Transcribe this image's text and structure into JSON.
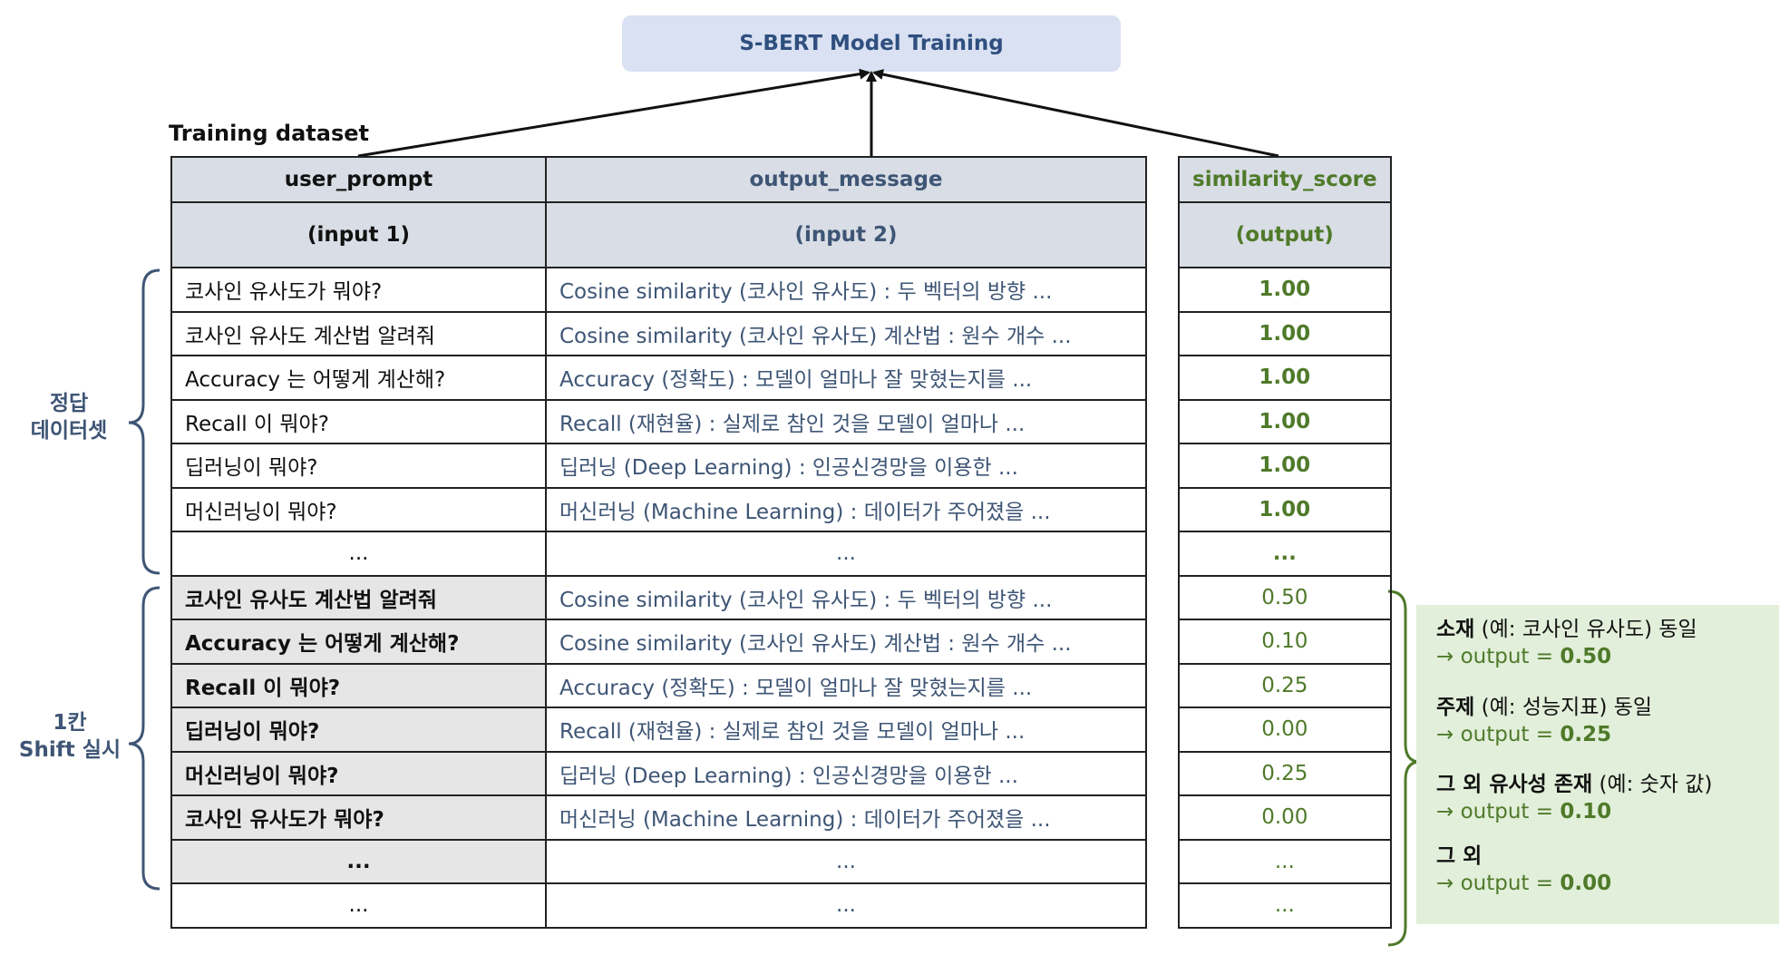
{
  "title": "S-BERT Model Training",
  "dataset_label": "Training dataset",
  "headers": {
    "col1": "user_prompt",
    "col2": "output_message",
    "col3": "similarity_score",
    "col1_sub": "(input 1)",
    "col2_sub": "(input 2)",
    "col3_sub": "(output)"
  },
  "groups": {
    "correct": "정답\n데이터셋",
    "shift": "1칸\nShift 실시"
  },
  "rows": [
    {
      "prompt": "코사인 유사도가 뭐야?",
      "message": "Cosine similarity (코사인 유사도) : 두 벡터의 방향 ...",
      "score": "1.00"
    },
    {
      "prompt": "코사인 유사도 계산법 알려줘",
      "message": "Cosine similarity (코사인 유사도) 계산법 : 원수 개수 ...",
      "score": "1.00"
    },
    {
      "prompt": "Accuracy 는 어떻게 계산해?",
      "message": "Accuracy (정확도) : 모델이 얼마나 잘 맞혔는지를 ...",
      "score": "1.00"
    },
    {
      "prompt": "Recall 이 뭐야?",
      "message": "Recall (재현율) : 실제로 참인 것을 모델이 얼마나 ...",
      "score": "1.00"
    },
    {
      "prompt": "딥러닝이 뭐야?",
      "message": "딥러닝 (Deep Learning) : 인공신경망을 이용한 ...",
      "score": "1.00"
    },
    {
      "prompt": "머신러닝이 뭐야?",
      "message": "머신러닝 (Machine Learning) : 데이터가 주어졌을 ...",
      "score": "1.00"
    },
    {
      "prompt": "...",
      "message": "...",
      "score": "..."
    },
    {
      "prompt": "코사인 유사도 계산법 알려줘",
      "message": "Cosine similarity (코사인 유사도) : 두 벡터의 방향 ...",
      "score": "0.50"
    },
    {
      "prompt": "Accuracy 는 어떻게 계산해?",
      "message": "Cosine similarity (코사인 유사도) 계산법 : 원수 개수 ...",
      "score": "0.10"
    },
    {
      "prompt": "Recall 이 뭐야?",
      "message": "Accuracy (정확도) : 모델이 얼마나 잘 맞혔는지를 ...",
      "score": "0.25"
    },
    {
      "prompt": "딥러닝이 뭐야?",
      "message": "Recall (재현율) : 실제로 참인 것을 모델이 얼마나 ...",
      "score": "0.00"
    },
    {
      "prompt": "머신러닝이 뭐야?",
      "message": "딥러닝 (Deep Learning) : 인공신경망을 이용한 ...",
      "score": "0.25"
    },
    {
      "prompt": "코사인 유사도가 뭐야?",
      "message": "머신러닝 (Machine Learning) : 데이터가 주어졌을 ...",
      "score": "0.00"
    },
    {
      "prompt": "...",
      "message": "...",
      "score": "..."
    },
    {
      "prompt": "...",
      "message": "...",
      "score": "..."
    }
  ],
  "rules": [
    {
      "key": "소재",
      "example": " (예: 코사인 유사도) 동일",
      "arrow": "→ output = ",
      "value": "0.50"
    },
    {
      "key": "주제",
      "example": " (예: 성능지표) 동일",
      "arrow": "→ output = ",
      "value": "0.25"
    },
    {
      "key": "그 외 유사성 존재",
      "example": " (예: 숫자 값)",
      "arrow": "→ output = ",
      "value": "0.10"
    },
    {
      "key": "그 외",
      "example": "",
      "arrow": "→ output = ",
      "value": "0.00"
    }
  ],
  "colors": {
    "title_bg": "#d9e1f2",
    "header_bg": "#d9dde5",
    "shift_bg": "#e6e6e6",
    "green": "#4f7a2a",
    "blue_text": "#3e5575",
    "rule_bg": "#e2efda"
  }
}
